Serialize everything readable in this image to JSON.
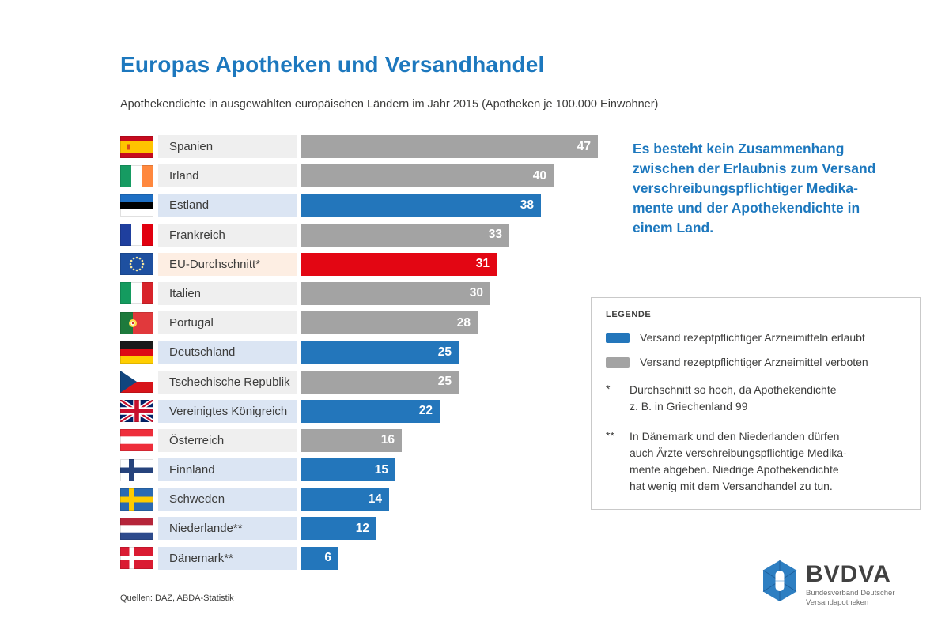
{
  "header": {
    "title": "Europas Apotheken und Versandhandel",
    "subtitle": "Apothekendichte in ausgewählten europäischen Ländern im Jahr 2015 (Apotheken je 100.000 Einwohner)"
  },
  "callout": {
    "lines": [
      "Es besteht kein Zusammenhang",
      "zwischen der Erlaubnis zum Versand",
      "verschreibungspflichtiger Medika-",
      "mente und der Apothekendichte in",
      "einem Land."
    ]
  },
  "chart_data": {
    "type": "bar",
    "orientation": "horizontal",
    "title": "Europas Apotheken und Versandhandel",
    "subtitle": "Apothekendichte in ausgewählten europäischen Ländern im Jahr 2015 (Apotheken je 100.000 Einwohner)",
    "categories": [
      "Spanien",
      "Irland",
      "Estland",
      "Frankreich",
      "EU-Durchschnitt*",
      "Italien",
      "Portugal",
      "Deutschland",
      "Tschechische Republik",
      "Vereinigtes Königreich",
      "Österreich",
      "Finnland",
      "Schweden",
      "Niederlande**",
      "Dänemark**"
    ],
    "values": [
      47,
      40,
      38,
      33,
      31,
      30,
      28,
      25,
      25,
      22,
      16,
      15,
      14,
      12,
      6
    ],
    "statuses": [
      "verboten",
      "verboten",
      "erlaubt",
      "verboten",
      "eu",
      "verboten",
      "verboten",
      "erlaubt",
      "verboten",
      "erlaubt",
      "verboten",
      "erlaubt",
      "erlaubt",
      "erlaubt",
      "erlaubt"
    ],
    "xlim": [
      0,
      47
    ],
    "grid": false,
    "value_labels": "inside-right",
    "legend_position": "right-box"
  },
  "rows": [
    {
      "country": "Spanien",
      "value": 47,
      "status": "verboten",
      "flag": "es"
    },
    {
      "country": "Irland",
      "value": 40,
      "status": "verboten",
      "flag": "ie"
    },
    {
      "country": "Estland",
      "value": 38,
      "status": "erlaubt",
      "flag": "ee"
    },
    {
      "country": "Frankreich",
      "value": 33,
      "status": "verboten",
      "flag": "fr"
    },
    {
      "country": "EU-Durchschnitt*",
      "value": 31,
      "status": "eu",
      "flag": "eu"
    },
    {
      "country": "Italien",
      "value": 30,
      "status": "verboten",
      "flag": "it"
    },
    {
      "country": "Portugal",
      "value": 28,
      "status": "verboten",
      "flag": "pt"
    },
    {
      "country": "Deutschland",
      "value": 25,
      "status": "erlaubt",
      "flag": "de"
    },
    {
      "country": "Tschechische Republik",
      "value": 25,
      "status": "verboten",
      "flag": "cz"
    },
    {
      "country": "Vereinigtes Königreich",
      "value": 22,
      "status": "erlaubt",
      "flag": "gb"
    },
    {
      "country": "Österreich",
      "value": 16,
      "status": "verboten",
      "flag": "at"
    },
    {
      "country": "Finnland",
      "value": 15,
      "status": "erlaubt",
      "flag": "fi"
    },
    {
      "country": "Schweden",
      "value": 14,
      "status": "erlaubt",
      "flag": "se"
    },
    {
      "country": "Niederlande**",
      "value": 12,
      "status": "erlaubt",
      "flag": "nl"
    },
    {
      "country": "Dänemark**",
      "value": 6,
      "status": "erlaubt",
      "flag": "dk"
    }
  ],
  "legend": {
    "title": "LEGENDE",
    "items": [
      {
        "swatch": "#2376bb",
        "label": "Versand rezeptpflichtiger Arzneimitteln erlaubt"
      },
      {
        "swatch": "#a3a3a3",
        "label": "Versand rezeptpflichtiger Arzneimittel verboten"
      }
    ],
    "notes": [
      {
        "marker": "*",
        "lines": [
          "Durchschnitt so hoch, da Apothekendichte",
          "z. B. in Griechenland 99"
        ]
      },
      {
        "marker": "**",
        "lines": [
          "In Dänemark und den Niederlanden dürfen",
          "auch Ärzte verschreibungspflichtige Medika-",
          "mente abgeben. Niedrige Apothekendichte",
          "hat wenig mit dem Versandhandel zu tun."
        ]
      }
    ]
  },
  "logo": {
    "name": "BVDVA",
    "subtitle_lines": [
      "Bundesverband Deutscher",
      "Versandapotheken"
    ]
  },
  "footer": {
    "source": "Quellen: DAZ, ABDA-Statistik"
  },
  "colors": {
    "erlaubt": "#2376bb",
    "verboten": "#a3a3a3",
    "eu": "#e30613",
    "label_erlaubt": "#dbe5f3",
    "label_verboten": "#efefef",
    "label_eu": "#fdeee3",
    "accent_blue": "#1d78be"
  }
}
